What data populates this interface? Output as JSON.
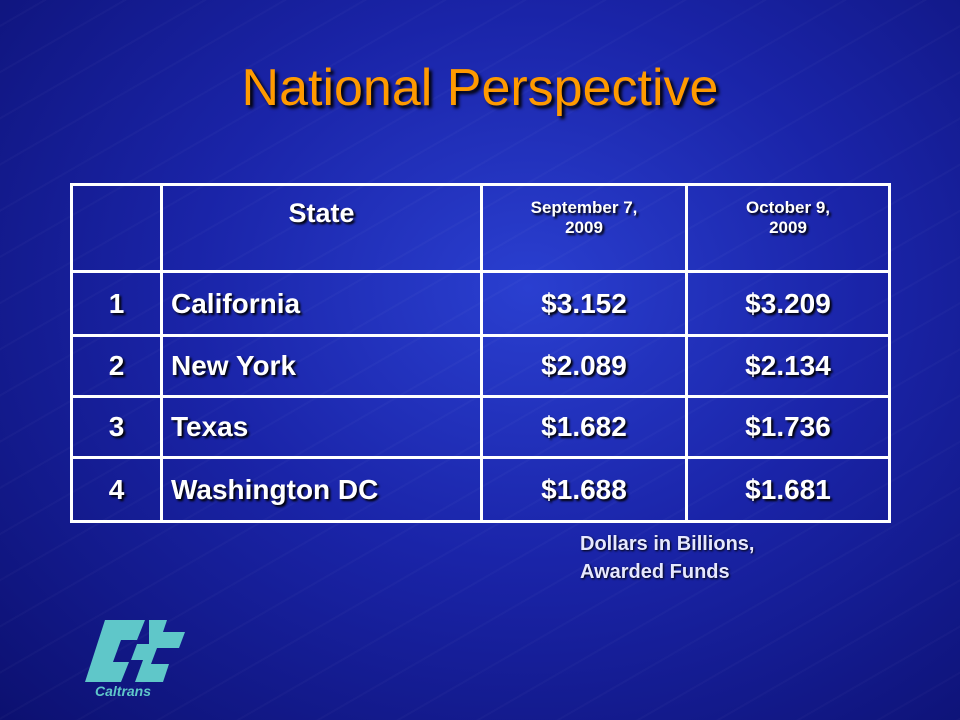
{
  "title": "National Perspective",
  "table": {
    "header": [
      "State",
      "September 7, 2009",
      "October 9, 2009"
    ],
    "rows": [
      [
        "1",
        "California",
        "$3.152",
        "$3.209"
      ],
      [
        "2",
        "New York",
        "$2.089",
        "$2.134"
      ],
      [
        "3",
        "Texas",
        "$1.682",
        "$1.736"
      ],
      [
        "4",
        "Washington DC",
        "$1.688",
        "$1.681"
      ]
    ]
  },
  "note": [
    "Dollars in Billions,",
    "Awarded Funds"
  ],
  "logo": {
    "text": "Caltrans"
  }
}
